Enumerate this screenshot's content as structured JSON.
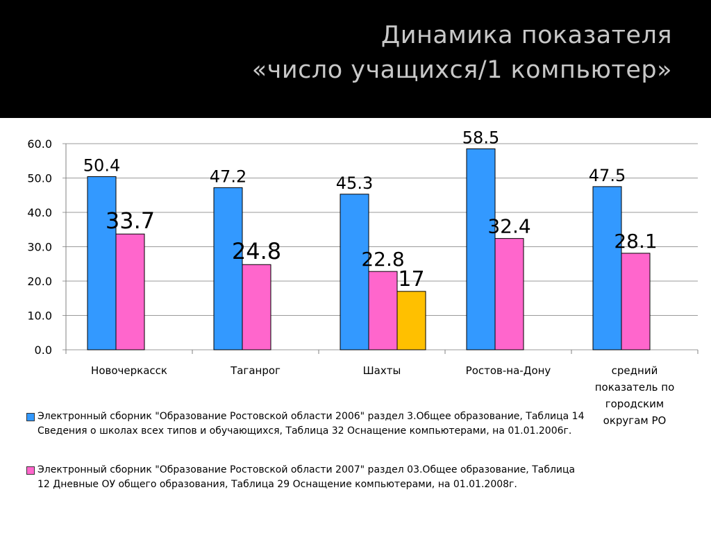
{
  "header": {
    "title_line1": "Динамика показателя",
    "title_line2": "«число учащихся/1 компьютер»"
  },
  "chart_data": {
    "type": "bar",
    "ylim": [
      0,
      60
    ],
    "yticks": [
      "0.0",
      "10.0",
      "20.0",
      "30.0",
      "40.0",
      "50.0",
      "60.0"
    ],
    "grid": true,
    "legend_position": "bottom-left",
    "categories": [
      "Новочеркасск",
      "Таганрог",
      "Шахты",
      "Ростов-на-Дону",
      "средний показатель по городским округам РО"
    ],
    "series": [
      {
        "name": "Электронный сборник \"Образование Ростовской области 2006\" раздел 3.Общее образование, Таблица 14 Сведения о школах всех типов и обучающихся, Таблица 32 Оснащение компьютерами, на 01.01.2006г.",
        "color": "#3399ff",
        "values": [
          50.4,
          47.2,
          45.3,
          58.5,
          47.5
        ],
        "labels": [
          "50.4",
          "47.2",
          "45.3",
          "58.5",
          "47.5"
        ]
      },
      {
        "name": "Электронный сборник \"Образование Ростовской области 2007\" раздел 03.Общее образование, Таблица 12 Дневные ОУ общего образования, Таблица 29 Оснащение компьютерами, на 01.01.2008г.",
        "color": "#ff66cc",
        "values": [
          33.7,
          24.8,
          22.8,
          32.4,
          28.1
        ],
        "labels": [
          "33.7",
          "24.8",
          "22.8",
          "32.4",
          "28.1"
        ]
      },
      {
        "color": "#ffc000",
        "values": [
          null,
          null,
          17,
          null,
          null
        ],
        "labels": [
          null,
          null,
          "17",
          null,
          null
        ]
      }
    ]
  }
}
